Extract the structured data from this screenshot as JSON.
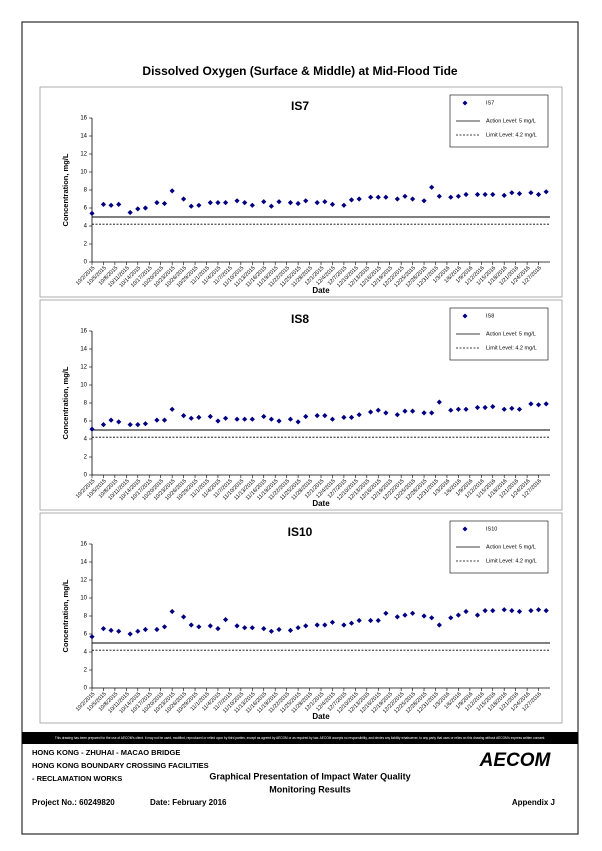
{
  "page": {
    "title": "Dissolved Oxygen (Surface & Middle) at Mid-Flood Tide"
  },
  "chart_data": [
    {
      "type": "scatter",
      "title": "IS7",
      "ylabel": "Concentration, mg/L",
      "xlabel": "Date",
      "x": [
        "10/2/2015",
        "10/5/2015",
        "10/7/2015",
        "10/9/2015",
        "10/12/2015",
        "10/14/2015",
        "10/16/2015",
        "10/19/2015",
        "10/21/2015",
        "10/23/2015",
        "10/26/2015",
        "10/28/2015",
        "10/30/2015",
        "11/2/2015",
        "11/4/2015",
        "11/6/2015",
        "11/9/2015",
        "11/11/2015",
        "11/13/2015",
        "11/16/2015",
        "11/18/2015",
        "11/20/2015",
        "11/23/2015",
        "11/25/2015",
        "11/27/2015",
        "11/30/2015",
        "12/2/2015",
        "12/4/2015",
        "12/7/2015",
        "12/9/2015",
        "12/11/2015",
        "12/14/2015",
        "12/16/2015",
        "12/18/2015",
        "12/21/2015",
        "12/23/2015",
        "12/25/2015",
        "12/28/2015",
        "12/30/2015",
        "1/1/2016",
        "1/4/2016",
        "1/6/2016",
        "1/8/2016",
        "1/11/2016",
        "1/13/2016",
        "1/15/2016",
        "1/18/2016",
        "1/20/2016",
        "1/22/2016",
        "1/25/2016",
        "1/27/2016",
        "1/29/2016"
      ],
      "series": [
        {
          "name": "IS7",
          "color": "#000080",
          "values": [
            5.4,
            6.4,
            6.3,
            6.4,
            5.5,
            5.9,
            6.0,
            6.6,
            6.5,
            7.9,
            7.0,
            6.2,
            6.3,
            6.6,
            6.6,
            6.6,
            6.8,
            6.6,
            6.3,
            6.7,
            6.2,
            6.7,
            6.6,
            6.5,
            6.8,
            6.6,
            6.7,
            6.4,
            6.3,
            6.9,
            7.0,
            7.2,
            7.2,
            7.2,
            7.0,
            7.3,
            7.0,
            6.8,
            8.3,
            7.3,
            7.2,
            7.3,
            7.5,
            7.5,
            7.5,
            7.5,
            7.4,
            7.7,
            7.6,
            7.7,
            7.5,
            7.8
          ]
        }
      ],
      "reference_lines": [
        {
          "name": "Action Level: 5 mg/L",
          "value": 5,
          "style": "solid"
        },
        {
          "name": "Limit Level: 4.2 mg/L",
          "value": 4.2,
          "style": "dashed"
        }
      ],
      "ylim": [
        0,
        16
      ],
      "yticks": [
        0,
        2,
        4,
        6,
        8,
        10,
        12,
        14,
        16
      ],
      "xlim": [
        "10/2/2015",
        "1/30/2016"
      ],
      "xticks": [
        "10/2/2015",
        "10/5/2015",
        "10/8/2015",
        "10/11/2015",
        "10/14/2015",
        "10/17/2015",
        "10/20/2015",
        "10/23/2015",
        "10/26/2015",
        "10/29/2015",
        "11/1/2015",
        "11/4/2015",
        "11/7/2015",
        "11/10/2015",
        "11/13/2015",
        "11/16/2015",
        "11/19/2015",
        "11/22/2015",
        "11/25/2015",
        "11/28/2015",
        "12/1/2015",
        "12/4/2015",
        "12/7/2015",
        "12/10/2015",
        "12/13/2015",
        "12/16/2015",
        "12/19/2015",
        "12/22/2015",
        "12/25/2015",
        "12/28/2015",
        "12/31/2015",
        "1/3/2016",
        "1/6/2016",
        "1/9/2016",
        "1/12/2016",
        "1/15/2016",
        "1/18/2016",
        "1/21/2016",
        "1/24/2016",
        "1/27/2016"
      ],
      "legend": "upper right"
    },
    {
      "type": "scatter",
      "title": "IS8",
      "ylabel": "Concentration, mg/L",
      "xlabel": "Date",
      "x": [
        "10/2/2015",
        "10/5/2015",
        "10/7/2015",
        "10/9/2015",
        "10/12/2015",
        "10/14/2015",
        "10/16/2015",
        "10/19/2015",
        "10/21/2015",
        "10/23/2015",
        "10/26/2015",
        "10/28/2015",
        "10/30/2015",
        "11/2/2015",
        "11/4/2015",
        "11/6/2015",
        "11/9/2015",
        "11/11/2015",
        "11/13/2015",
        "11/16/2015",
        "11/18/2015",
        "11/20/2015",
        "11/23/2015",
        "11/25/2015",
        "11/27/2015",
        "11/30/2015",
        "12/2/2015",
        "12/4/2015",
        "12/7/2015",
        "12/9/2015",
        "12/11/2015",
        "12/14/2015",
        "12/16/2015",
        "12/18/2015",
        "12/21/2015",
        "12/23/2015",
        "12/25/2015",
        "12/28/2015",
        "12/30/2015",
        "1/1/2016",
        "1/4/2016",
        "1/6/2016",
        "1/8/2016",
        "1/11/2016",
        "1/13/2016",
        "1/15/2016",
        "1/18/2016",
        "1/20/2016",
        "1/22/2016",
        "1/25/2016",
        "1/27/2016",
        "1/29/2016"
      ],
      "series": [
        {
          "name": "IS8",
          "color": "#000080",
          "values": [
            5.1,
            5.6,
            6.1,
            5.9,
            5.6,
            5.6,
            5.7,
            6.1,
            6.1,
            7.3,
            6.6,
            6.3,
            6.4,
            6.5,
            6.0,
            6.3,
            6.2,
            6.2,
            6.2,
            6.5,
            6.2,
            6.0,
            6.2,
            5.9,
            6.5,
            6.6,
            6.6,
            6.2,
            6.4,
            6.4,
            6.7,
            7.0,
            7.2,
            6.9,
            6.7,
            7.1,
            7.1,
            6.9,
            6.9,
            8.1,
            7.2,
            7.3,
            7.3,
            7.5,
            7.5,
            7.6,
            7.3,
            7.4,
            7.3,
            7.9,
            7.8,
            7.9
          ]
        }
      ],
      "reference_lines": [
        {
          "name": "Action Level: 5 mg/L",
          "value": 5,
          "style": "solid"
        },
        {
          "name": "Limit Level: 4.2 mg/L",
          "value": 4.2,
          "style": "dashed"
        }
      ],
      "ylim": [
        0,
        16
      ],
      "yticks": [
        0,
        2,
        4,
        6,
        8,
        10,
        12,
        14,
        16
      ],
      "xlim": [
        "10/2/2015",
        "1/30/2016"
      ],
      "xticks": [
        "10/2/2015",
        "10/5/2015",
        "10/8/2015",
        "10/11/2015",
        "10/14/2015",
        "10/17/2015",
        "10/20/2015",
        "10/23/2015",
        "10/26/2015",
        "10/29/2015",
        "11/1/2015",
        "11/4/2015",
        "11/7/2015",
        "11/10/2015",
        "11/13/2015",
        "11/16/2015",
        "11/19/2015",
        "11/22/2015",
        "11/25/2015",
        "11/28/2015",
        "12/1/2015",
        "12/4/2015",
        "12/7/2015",
        "12/10/2015",
        "12/13/2015",
        "12/16/2015",
        "12/19/2015",
        "12/22/2015",
        "12/25/2015",
        "12/28/2015",
        "12/31/2015",
        "1/3/2016",
        "1/6/2016",
        "1/9/2016",
        "1/12/2016",
        "1/15/2016",
        "1/18/2016",
        "1/21/2016",
        "1/24/2016",
        "1/27/2016"
      ],
      "legend": "upper right"
    },
    {
      "type": "scatter",
      "title": "IS10",
      "ylabel": "Concentration, mg/L",
      "xlabel": "Date",
      "x": [
        "10/2/2015",
        "10/5/2015",
        "10/7/2015",
        "10/9/2015",
        "10/12/2015",
        "10/14/2015",
        "10/16/2015",
        "10/19/2015",
        "10/21/2015",
        "10/23/2015",
        "10/26/2015",
        "10/28/2015",
        "10/30/2015",
        "11/2/2015",
        "11/4/2015",
        "11/6/2015",
        "11/9/2015",
        "11/11/2015",
        "11/13/2015",
        "11/16/2015",
        "11/18/2015",
        "11/20/2015",
        "11/23/2015",
        "11/25/2015",
        "11/27/2015",
        "11/30/2015",
        "12/2/2015",
        "12/4/2015",
        "12/7/2015",
        "12/9/2015",
        "12/11/2015",
        "12/14/2015",
        "12/16/2015",
        "12/18/2015",
        "12/21/2015",
        "12/23/2015",
        "12/25/2015",
        "12/28/2015",
        "12/30/2015",
        "1/1/2016",
        "1/4/2016",
        "1/6/2016",
        "1/8/2016",
        "1/11/2016",
        "1/13/2016",
        "1/15/2016",
        "1/18/2016",
        "1/20/2016",
        "1/22/2016",
        "1/25/2016",
        "1/27/2016",
        "1/29/2016"
      ],
      "series": [
        {
          "name": "IS10",
          "color": "#000080",
          "values": [
            5.7,
            6.6,
            6.4,
            6.3,
            6.0,
            6.3,
            6.5,
            6.5,
            6.8,
            8.5,
            7.9,
            7.0,
            6.8,
            6.9,
            6.6,
            7.6,
            6.9,
            6.7,
            6.7,
            6.6,
            6.3,
            6.5,
            6.4,
            6.7,
            6.9,
            7.0,
            7.0,
            7.3,
            7.0,
            7.2,
            7.5,
            7.5,
            7.5,
            8.3,
            7.9,
            8.1,
            8.3,
            8.0,
            7.8,
            7.0,
            7.8,
            8.1,
            8.5,
            8.1,
            8.6,
            8.6,
            8.7,
            8.6,
            8.5,
            8.6,
            8.7,
            8.6
          ]
        }
      ],
      "reference_lines": [
        {
          "name": "Action Level: 5 mg/L",
          "value": 5,
          "style": "solid"
        },
        {
          "name": "Limit Level: 4.2 mg/L",
          "value": 4.2,
          "style": "dashed"
        }
      ],
      "ylim": [
        0,
        16
      ],
      "yticks": [
        0,
        2,
        4,
        6,
        8,
        10,
        12,
        14,
        16
      ],
      "xlim": [
        "10/2/2015",
        "1/30/2016"
      ],
      "xticks": [
        "10/2/2015",
        "10/5/2015",
        "10/8/2015",
        "10/11/2015",
        "10/14/2015",
        "10/17/2015",
        "10/20/2015",
        "10/23/2015",
        "10/26/2015",
        "10/29/2015",
        "11/1/2015",
        "11/4/2015",
        "11/7/2015",
        "11/10/2015",
        "11/13/2015",
        "11/16/2015",
        "11/19/2015",
        "11/22/2015",
        "11/25/2015",
        "11/28/2015",
        "12/1/2015",
        "12/4/2015",
        "12/7/2015",
        "12/10/2015",
        "12/13/2015",
        "12/16/2015",
        "12/19/2015",
        "12/22/2015",
        "12/25/2015",
        "12/28/2015",
        "12/31/2015",
        "1/3/2016",
        "1/6/2016",
        "1/9/2016",
        "1/12/2016",
        "1/15/2016",
        "1/18/2016",
        "1/21/2016",
        "1/24/2016",
        "1/27/2016"
      ],
      "legend": "upper right"
    }
  ],
  "footer": {
    "disclaimer": "This drawing has been prepared for the use of AECOM's client. It may not be used, modified, reproduced or relied upon by third parties, except as agreed by AECOM or as required by law. AECOM accepts no responsibility, and denies any liability whatsoever, to any party that uses or relies on this drawing without AECOM's express written consent.",
    "project_lines": [
      "HONG KONG - ZHUHAI - MACAO BRIDGE",
      "HONG KONG BOUNDARY CROSSING FACILITIES",
      "- RECLAMATION WORKS"
    ],
    "drawing_title": [
      "Graphical Presentation of Impact Water Quality",
      "Monitoring Results"
    ],
    "logo": "AECOM",
    "project_no": "Project No.: 60249820",
    "date": "Date: February 2016",
    "appendix": "Appendix J"
  }
}
